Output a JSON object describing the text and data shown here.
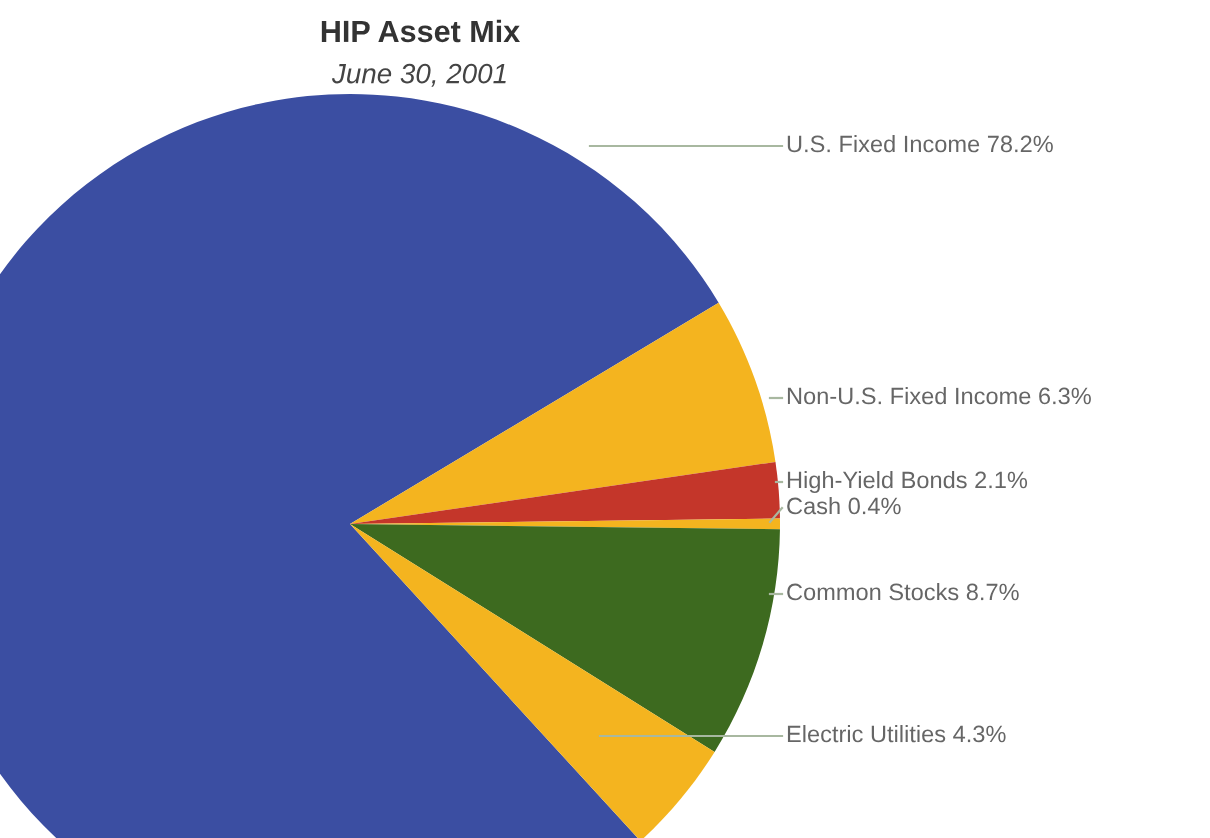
{
  "chart_data": {
    "type": "pie",
    "title": "HIP Asset Mix",
    "subtitle": "June 30, 2001",
    "categories": [
      "U.S. Fixed Income",
      "Non-U.S. Fixed Income",
      "High-Yield Bonds",
      "Cash",
      "Common Stocks",
      "Electric Utilities"
    ],
    "values": [
      78.2,
      6.3,
      2.1,
      0.4,
      8.7,
      4.3
    ],
    "value_labels": [
      "78.2%",
      "6.3%",
      "2.1%",
      "0.4%",
      "8.7%",
      "4.3%"
    ],
    "colors": [
      "#3b4ea2",
      "#f4b41f",
      "#c4362a",
      "#f4b41f",
      "#3d6a1f",
      "#f4b41f"
    ],
    "legend": false
  }
}
